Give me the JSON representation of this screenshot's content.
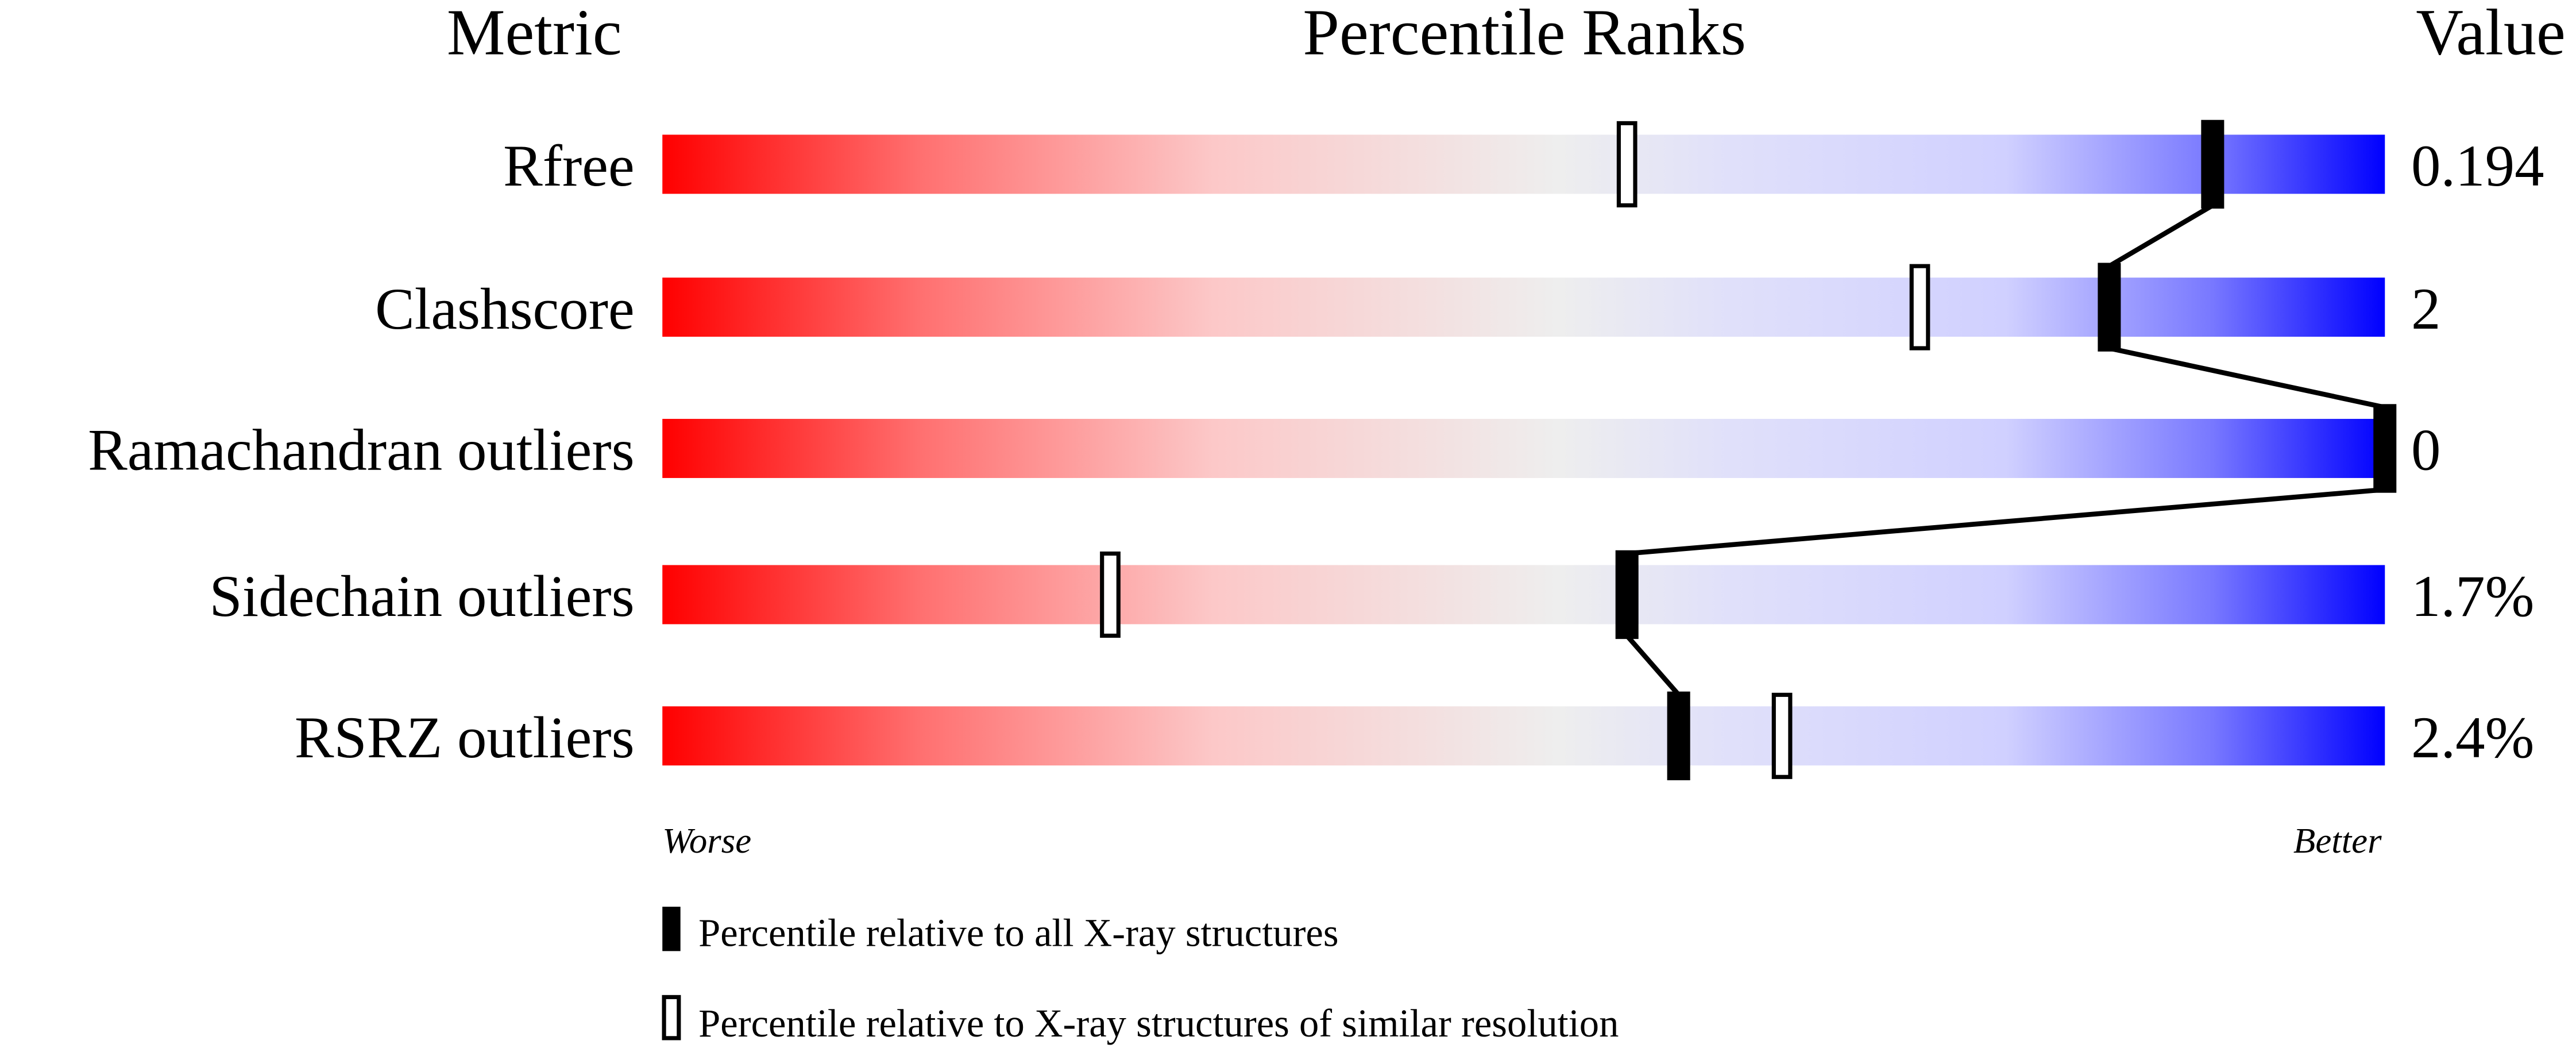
{
  "chart_data": {
    "type": "percentile-slider",
    "headers": {
      "metric": "Metric",
      "ranks": "Percentile Ranks",
      "value": "Value"
    },
    "xlim": [
      0,
      100
    ],
    "axis_labels": {
      "worse": "Worse",
      "better": "Better"
    },
    "colors": {
      "worse": "#ff0000",
      "middle": "#eeeeee",
      "better": "#0000ff",
      "marker": "#000000"
    },
    "metrics": [
      {
        "name": "Rfree",
        "value": "0.194",
        "percentile_all": 90,
        "percentile_similar": 56
      },
      {
        "name": "Clashscore",
        "value": "2",
        "percentile_all": 84,
        "percentile_similar": 73
      },
      {
        "name": "Ramachandran outliers",
        "value": "0",
        "percentile_all": 100,
        "percentile_similar": 100
      },
      {
        "name": "Sidechain outliers",
        "value": "1.7%",
        "percentile_all": 56,
        "percentile_similar": 26
      },
      {
        "name": "RSRZ outliers",
        "value": "2.4%",
        "percentile_all": 59,
        "percentile_similar": 65
      }
    ],
    "legend": {
      "all": "Percentile relative to all X-ray structures",
      "similar": "Percentile relative to X-ray structures of similar resolution"
    }
  }
}
